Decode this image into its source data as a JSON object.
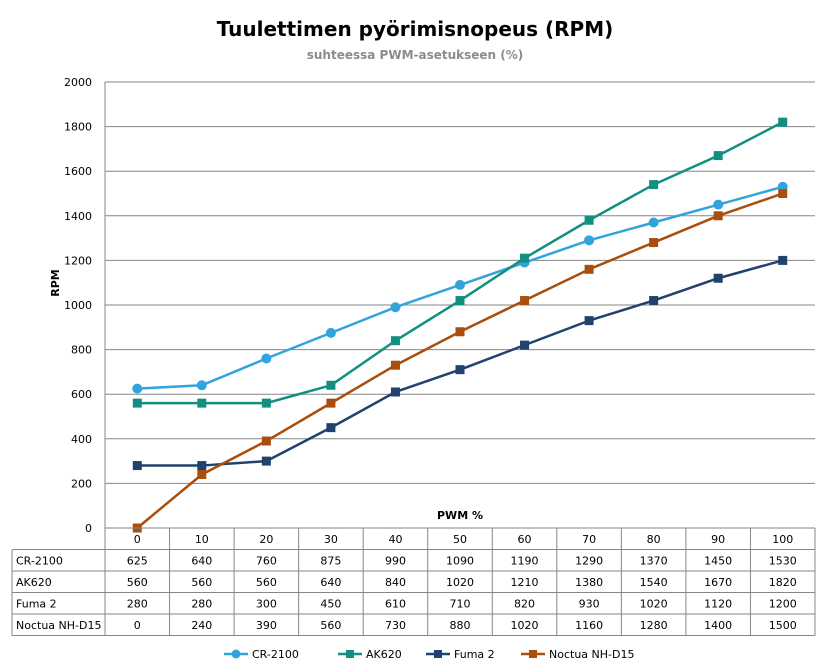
{
  "chart_data": {
    "type": "line",
    "title": "Tuulettimen pyörimisnopeus (RPM)",
    "subtitle": "suhteessa PWM-asetukseen (%)",
    "xlabel": "PWM %",
    "ylabel": "RPM",
    "ylim": [
      0,
      2000
    ],
    "yticks": [
      "0",
      "200",
      "400",
      "600",
      "800",
      "1000",
      "1200",
      "1400",
      "1600",
      "1800",
      "2000"
    ],
    "categories": [
      "0",
      "10",
      "20",
      "30",
      "40",
      "50",
      "60",
      "70",
      "80",
      "90",
      "100"
    ],
    "grid": "horizontal",
    "legend_position": "bottom",
    "data_table": true,
    "series": [
      {
        "name": "CR-2100",
        "color": "#33a3dc",
        "marker": "circle",
        "values": [
          625,
          640,
          760,
          875,
          990,
          1090,
          1190,
          1290,
          1370,
          1450,
          1530
        ]
      },
      {
        "name": "AK620",
        "color": "#138f82",
        "marker": "square",
        "values": [
          560,
          560,
          560,
          640,
          840,
          1020,
          1210,
          1380,
          1540,
          1670,
          1820
        ]
      },
      {
        "name": "Fuma 2",
        "color": "#21416f",
        "marker": "square",
        "values": [
          280,
          280,
          300,
          450,
          610,
          710,
          820,
          930,
          1020,
          1120,
          1200
        ]
      },
      {
        "name": "Noctua NH-D15",
        "color": "#a94e0c",
        "marker": "square",
        "values": [
          0,
          240,
          390,
          560,
          730,
          880,
          1020,
          1160,
          1280,
          1400,
          1500
        ]
      }
    ]
  }
}
